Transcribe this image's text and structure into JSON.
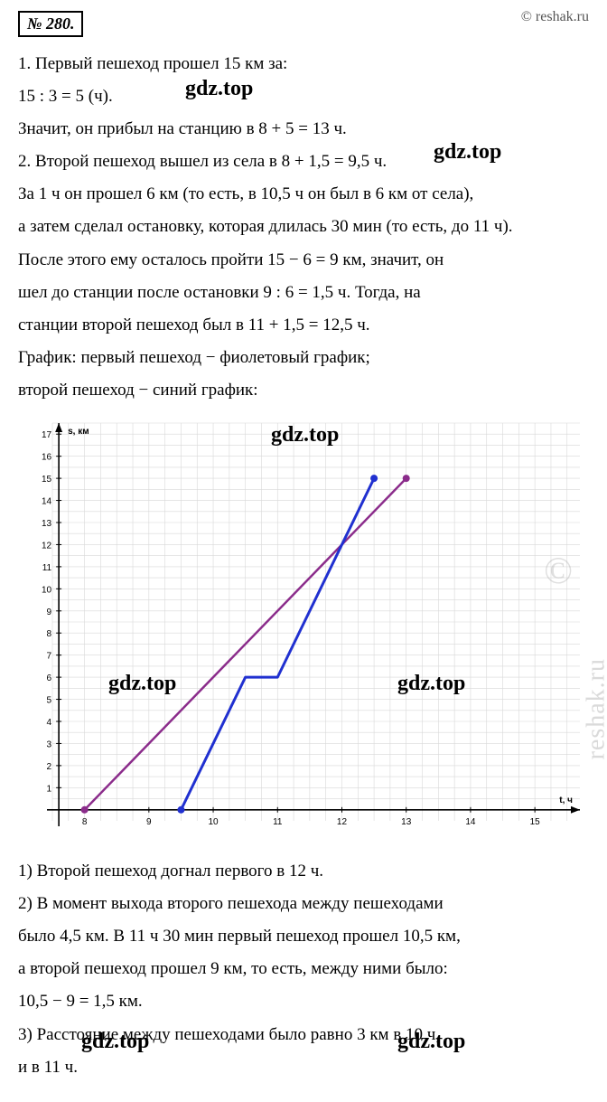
{
  "header": {
    "problem_number": "№ 280.",
    "credit": "© reshak.ru"
  },
  "lines": {
    "l1": "1.  Первый пешеход прошел 15 км за:",
    "l2": "15 : 3 = 5 (ч).",
    "l3": "Значит, он прибыл на станцию в 8 + 5 = 13 ч.",
    "l4": "2.  Второй пешеход вышел из села в 8 + 1,5 = 9,5 ч.",
    "l5": "За 1 ч он прошел 6 км (то есть, в 10,5 ч он был в 6 км от села),",
    "l6": "а затем сделал остановку, которая длилась 30 мин (то есть, до 11 ч).",
    "l7": "После этого ему осталось пройти 15 − 6 = 9 км, значит, он",
    "l8": "шел до станции после остановки 9 : 6 = 1,5 ч. Тогда, на",
    "l9": "станции второй пешеход был в 11 + 1,5 = 12,5 ч.",
    "l10": "График:  первый пешеход − фиолетовый график;",
    "l11": "второй пешеход − синий график:",
    "a1": "1) Второй пешеход догнал первого в 12 ч.",
    "a2": "2) В момент выхода второго пешехода между пешеходами",
    "a3": "было 4,5 км.  В 11 ч 30 мин первый пешеход прошел 10,5 км,",
    "a4": "а второй пешеход прошел 9 км, то есть, между ними было:",
    "a5": "10,5 − 9 = 1,5 км.",
    "a6": "3) Расстояние между пешеходами было равно 3 км в 10 ч,",
    "a7": "и в 11 ч."
  },
  "watermarks": {
    "w1": "gdz.top",
    "w2": "gdz.top",
    "w3": "gdz.top",
    "w4": "gdz.top",
    "w5": "gdz.top",
    "w6": "gdz.top",
    "w7": "gdz.top",
    "side": "reshak.ru",
    "side_c": "©"
  },
  "chart": {
    "type": "line",
    "xlabel": "t, ч",
    "ylabel": "s, км",
    "xlim": [
      7.5,
      15.7
    ],
    "ylim": [
      -0.5,
      17.5
    ],
    "x_ticks": [
      8,
      9,
      10,
      11,
      12,
      13,
      14,
      15
    ],
    "y_ticks": [
      1,
      2,
      3,
      4,
      5,
      6,
      7,
      8,
      9,
      10,
      11,
      12,
      13,
      14,
      15,
      16,
      17
    ],
    "grid_color": "#d8d8d8",
    "axis_color": "#000000",
    "background_color": "#ffffff",
    "label_fontsize": 10,
    "tick_fontsize": 10,
    "series": [
      {
        "name": "first_pedestrian",
        "color": "#8b2c8b",
        "line_width": 2.5,
        "points": [
          [
            8,
            0
          ],
          [
            13,
            15
          ]
        ],
        "marker_end_color": "#8b2c8b",
        "marker_radius": 4
      },
      {
        "name": "second_pedestrian",
        "color": "#2030d0",
        "line_width": 3,
        "points": [
          [
            9.5,
            0
          ],
          [
            10.5,
            6
          ],
          [
            11,
            6
          ],
          [
            12.5,
            15
          ]
        ],
        "marker_end_color": "#2030d0",
        "marker_radius": 4
      }
    ]
  }
}
